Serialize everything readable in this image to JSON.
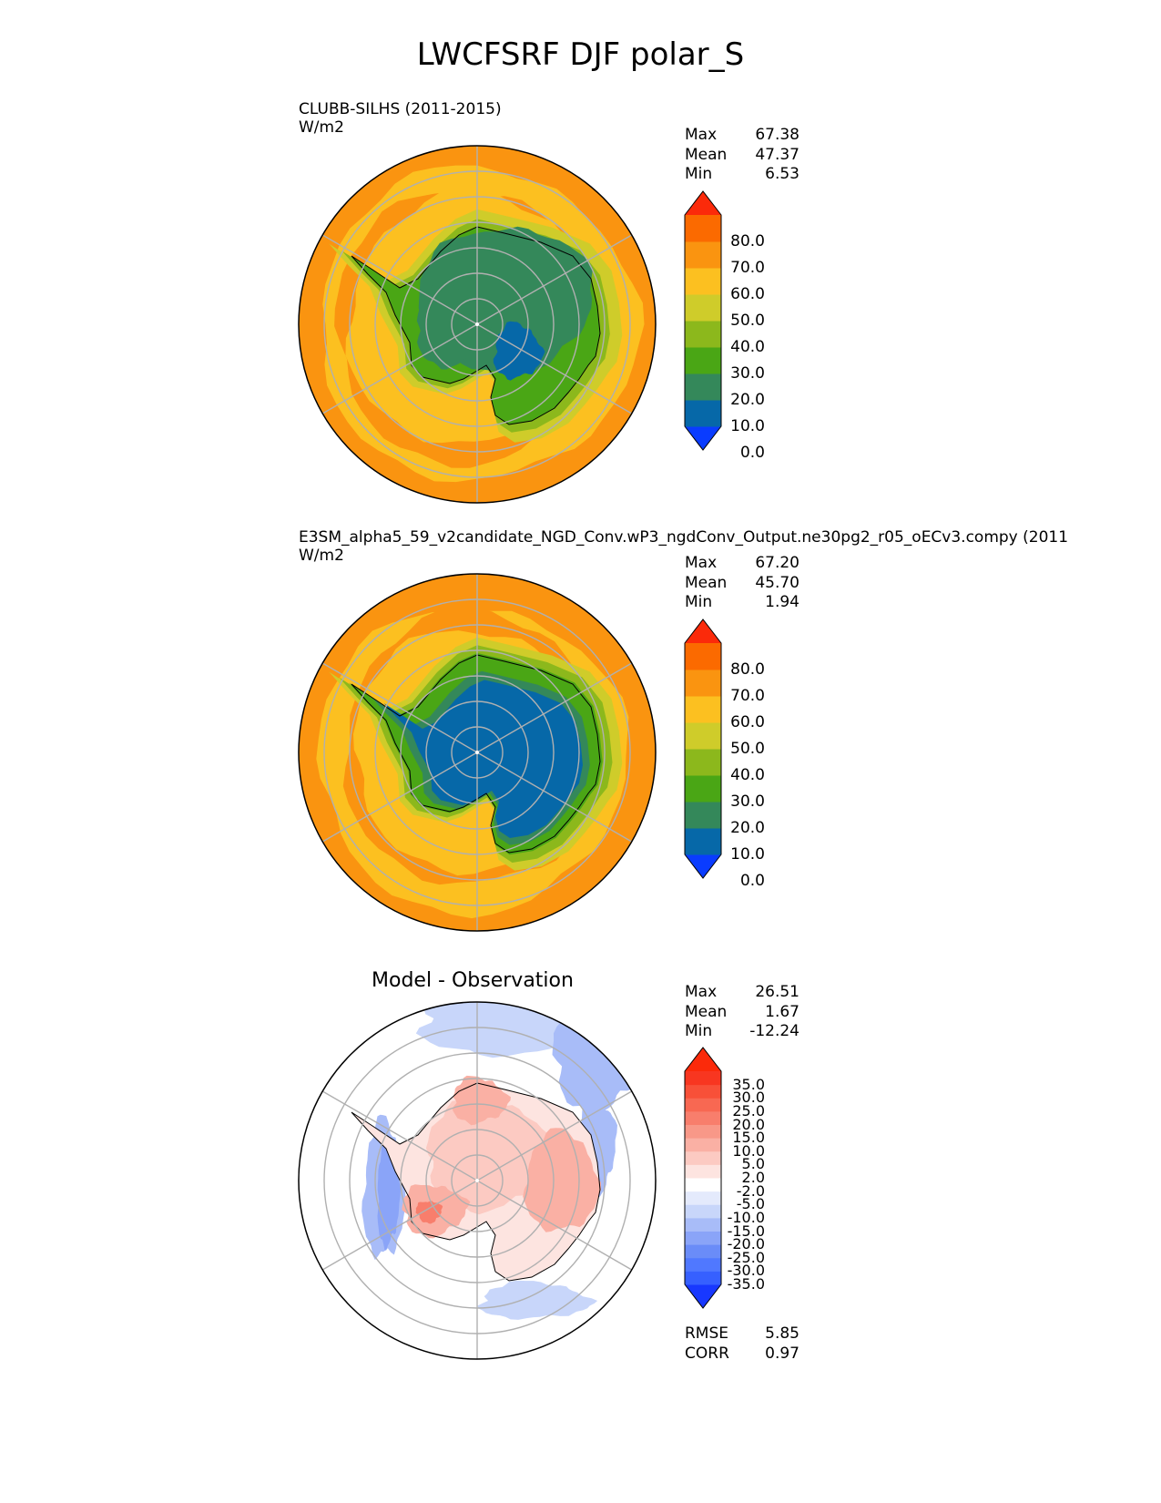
{
  "title": "LWCFSRF DJF polar_S",
  "colors": {
    "main": [
      "#0a3cff",
      "#0668a8",
      "#34885a",
      "#4aa615",
      "#8cb81c",
      "#cfcc2a",
      "#fcc020",
      "#fa9410",
      "#fb6a00",
      "#fb2a0a"
    ],
    "diff": [
      "#1838ff",
      "#3660ff",
      "#5078ff",
      "#6a8cf8",
      "#8aa4f8",
      "#a8bcf8",
      "#c8d6fa",
      "#e4eafc",
      "#ffffff",
      "#fde4e0",
      "#fccac2",
      "#fab0a4",
      "#f89888",
      "#f87e6c",
      "#f86852",
      "#f85038",
      "#f83620",
      "#fb2a0a"
    ]
  },
  "panels": [
    {
      "title": "CLUBB-SILHS (2011-2015)",
      "units": "W/m2",
      "stats": [
        {
          "label": "Max",
          "value": "67.38"
        },
        {
          "label": "Mean",
          "value": "47.37"
        },
        {
          "label": "Min",
          "value": "6.53"
        }
      ],
      "colorbar_labels": [
        "80.0",
        "70.0",
        "60.0",
        "50.0",
        "40.0",
        "30.0",
        "20.0",
        "10.0",
        "0.0"
      ]
    },
    {
      "title": "E3SM_alpha5_59_v2candidate_NGD_Conv.wP3_ngdConv_Output.ne30pg2_r05_oECv3.compy (2011",
      "units": "W/m2",
      "stats": [
        {
          "label": "Max",
          "value": "67.20"
        },
        {
          "label": "Mean",
          "value": "45.70"
        },
        {
          "label": "Min",
          "value": "1.94"
        }
      ],
      "colorbar_labels": [
        "80.0",
        "70.0",
        "60.0",
        "50.0",
        "40.0",
        "30.0",
        "20.0",
        "10.0",
        "0.0"
      ]
    },
    {
      "title": "Model - Observation",
      "stats": [
        {
          "label": "Max",
          "value": "26.51"
        },
        {
          "label": "Mean",
          "value": "1.67"
        },
        {
          "label": "Min",
          "value": "-12.24"
        }
      ],
      "colorbar_labels": [
        "35.0",
        "30.0",
        "25.0",
        "20.0",
        "15.0",
        "10.0",
        "5.0",
        "2.0",
        "-2.0",
        "-5.0",
        "-10.0",
        "-15.0",
        "-20.0",
        "-25.0",
        "-30.0",
        "-35.0"
      ],
      "metrics": [
        {
          "label": "RMSE",
          "value": "5.85"
        },
        {
          "label": "CORR",
          "value": "0.97"
        }
      ]
    }
  ],
  "chart_data": [
    {
      "type": "heatmap",
      "title": "CLUBB-SILHS (2011-2015)",
      "projection": "south polar stereographic",
      "units": "W/m2",
      "levels": [
        0,
        10,
        20,
        30,
        40,
        50,
        60,
        70,
        80
      ],
      "stats": {
        "max": 67.38,
        "mean": 47.37,
        "min": 6.53
      }
    },
    {
      "type": "heatmap",
      "title": "E3SM_alpha5_59_v2candidate_NGD_Conv.wP3_ngdConv_Output.ne30pg2_r05_oECv3.compy (2011",
      "projection": "south polar stereographic",
      "units": "W/m2",
      "levels": [
        0,
        10,
        20,
        30,
        40,
        50,
        60,
        70,
        80
      ],
      "stats": {
        "max": 67.2,
        "mean": 45.7,
        "min": 1.94
      }
    },
    {
      "type": "heatmap",
      "title": "Model - Observation",
      "projection": "south polar stereographic",
      "levels": [
        -35,
        -30,
        -25,
        -20,
        -15,
        -10,
        -5,
        -2,
        2,
        5,
        10,
        15,
        20,
        25,
        30,
        35
      ],
      "stats": {
        "max": 26.51,
        "mean": 1.67,
        "min": -12.24
      },
      "rmse": 5.85,
      "corr": 0.97
    }
  ]
}
